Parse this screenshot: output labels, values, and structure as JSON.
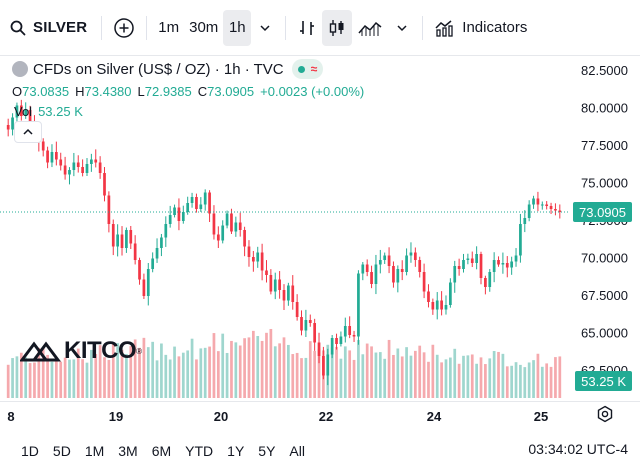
{
  "toolbar": {
    "symbol": "SILVER",
    "intervals": [
      "1m",
      "30m",
      "1h"
    ],
    "active_interval": "1h",
    "indicators_label": "Indicators"
  },
  "legend": {
    "title": "CFDs on Silver (US$ / OZ) · 1h · TVC",
    "ohlc": [
      {
        "k": "O",
        "v": "73.0835"
      },
      {
        "k": "H",
        "v": "73.4380"
      },
      {
        "k": "L",
        "v": "72.9385"
      },
      {
        "k": "C",
        "v": "73.0905"
      }
    ],
    "change": "+0.0023 (+0.00%)",
    "vol_label": "Vol",
    "vol_value": "53.25 K"
  },
  "watermark": {
    "text": "KITCO",
    "reg": "®"
  },
  "price_axis": {
    "ticks": [
      "82.5000",
      "80.0000",
      "77.5000",
      "75.0000",
      "72.5000",
      "70.0000",
      "67.5000",
      "65.0000",
      "62.5000"
    ],
    "current_price": "73.0905",
    "current_volume": "53.25 K"
  },
  "time_axis": {
    "labels": [
      "8",
      "19",
      "20",
      "22",
      "24",
      "25"
    ]
  },
  "ranges": [
    "1D",
    "5D",
    "1M",
    "3M",
    "6M",
    "YTD",
    "1Y",
    "5Y",
    "All"
  ],
  "clock": "03:34:02 UTC-4",
  "colors": {
    "up": "#22ab94",
    "down": "#f23645",
    "up_vol": "#9fd6ce",
    "down_vol": "#f5a9ad",
    "axis_tag": "#22ab94"
  },
  "chart_data": {
    "type": "candlestick",
    "series": [
      {
        "name": "SILVER",
        "interval": "1h"
      }
    ],
    "ylim": [
      60.5,
      83.5
    ],
    "closes": [
      78.6,
      79.4,
      80.2,
      79.5,
      79.9,
      79.1,
      78.3,
      77.8,
      77.2,
      76.4,
      77.1,
      76.6,
      76.2,
      75.6,
      75.9,
      76.4,
      76.1,
      75.7,
      76.3,
      76.6,
      76.4,
      75.7,
      74.2,
      72.3,
      70.8,
      71.6,
      70.7,
      71.9,
      71.0,
      69.9,
      68.6,
      67.5,
      69.3,
      70.0,
      70.7,
      71.4,
      72.3,
      72.9,
      73.4,
      72.5,
      73.1,
      73.7,
      74.1,
      73.3,
      73.6,
      74.4,
      73.0,
      71.6,
      71.2,
      72.2,
      73.0,
      71.8,
      72.4,
      71.9,
      70.8,
      70.1,
      69.8,
      70.4,
      69.2,
      68.9,
      67.8,
      68.6,
      67.9,
      67.2,
      68.2,
      67.1,
      66.1,
      65.2,
      65.9,
      65.7,
      64.4,
      63.5,
      62.2,
      63.6,
      64.7,
      64.3,
      64.8,
      65.5,
      64.9,
      64.8,
      69.0,
      69.6,
      69.1,
      68.3,
      69.6,
      69.9,
      70.2,
      69.5,
      68.4,
      69.3,
      69.1,
      70.2,
      70.4,
      69.9,
      69.1,
      67.8,
      67.1,
      66.6,
      67.2,
      66.6,
      66.9,
      68.4,
      69.5,
      69.3,
      69.9,
      70.0,
      69.7,
      70.3,
      68.7,
      68.1,
      69.1,
      69.9,
      69.6,
      69.7,
      69.4,
      69.8,
      70.2,
      72.3,
      72.7,
      73.6,
      74.0,
      73.6,
      73.6,
      73.5,
      73.3,
      73.2,
      73.1
    ],
    "volume_unit": "K",
    "last_volume": 53.25
  }
}
